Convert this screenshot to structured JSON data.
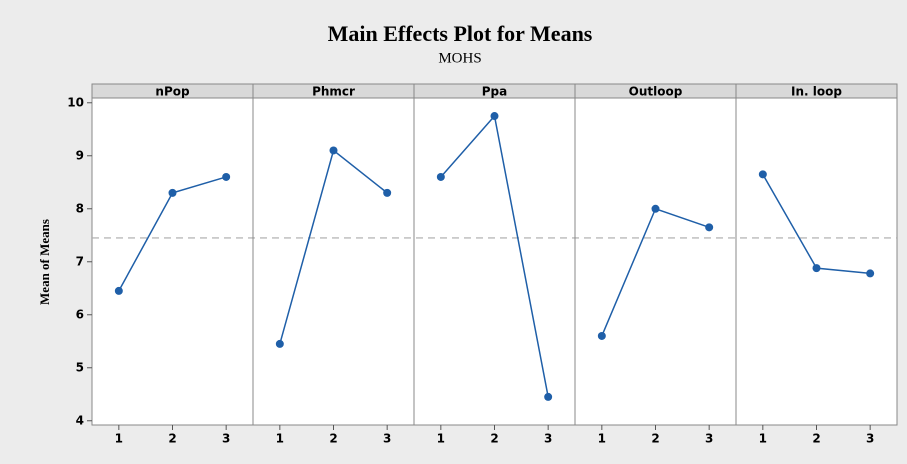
{
  "chart_data": {
    "type": "line",
    "title": "Main Effects Plot for Means",
    "subtitle": "MOHS",
    "ylabel": "Mean of Means",
    "x": [
      1,
      2,
      3
    ],
    "xlim": [
      0.5,
      3.5
    ],
    "xticks": [
      1,
      2,
      3
    ],
    "ylim": [
      3.92,
      10.09
    ],
    "yticks": [
      4,
      5,
      6,
      7,
      8,
      9,
      10
    ],
    "mean": 7.45,
    "color": "#1f5fa8",
    "panels": [
      {
        "name": "nPop",
        "values": [
          6.45,
          8.3,
          8.6
        ]
      },
      {
        "name": "Phmcr",
        "values": [
          5.45,
          9.1,
          8.3
        ]
      },
      {
        "name": "Ppa",
        "values": [
          8.6,
          9.75,
          4.45
        ]
      },
      {
        "name": "Outloop",
        "values": [
          5.6,
          8.0,
          7.65
        ]
      },
      {
        "name": "In. loop",
        "values": [
          8.65,
          6.88,
          6.78
        ]
      }
    ]
  }
}
